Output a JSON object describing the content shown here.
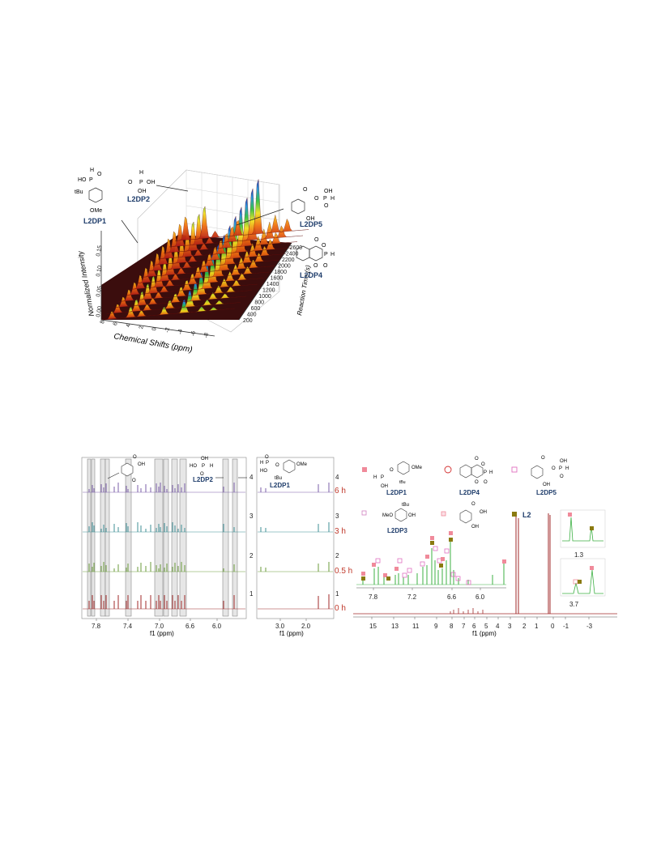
{
  "figure_top": {
    "x_axis_label": "Chemical Shifts (ppm)",
    "y_axis_label": "Normalized Intensity",
    "z_axis_label": "Reaction Time (s)",
    "x_ticks": [
      "8",
      "6",
      "4",
      "2",
      "0",
      "-2",
      "-4",
      "-6",
      "-8"
    ],
    "y_ticks": [
      "0.00",
      "0.05",
      "0.10",
      "0.15"
    ],
    "z_ticks": [
      "200",
      "400",
      "600",
      "800",
      "1000",
      "1200",
      "1400",
      "1600",
      "1800",
      "2000",
      "2200",
      "2400",
      "2600"
    ],
    "compounds": [
      {
        "id": "L2DP1",
        "label": "L2DP1",
        "groups": [
          "HO",
          "P",
          "O",
          "H",
          "tBu",
          "OMe"
        ]
      },
      {
        "id": "L2DP2",
        "label": "L2DP2",
        "groups": [
          "H",
          "O",
          "P",
          "OH",
          "OH"
        ]
      },
      {
        "id": "L2DP5",
        "label": "L2DP5",
        "groups": [
          "O",
          "O",
          "P",
          "H",
          "OH",
          "OH",
          "O"
        ]
      },
      {
        "id": "L2DP4",
        "label": "L2DP4",
        "groups": [
          "O",
          "O",
          "P",
          "H",
          "O",
          "O"
        ]
      }
    ]
  },
  "figure_bottom_left": {
    "xlabel": "f1 (ppm)",
    "x_ticks": [
      "7.8",
      "7.4",
      "7.0",
      "6.6",
      "6.0"
    ],
    "trace_numbers": [
      "4",
      "3",
      "2",
      "1"
    ],
    "trace_colors": [
      "#7b5fa8",
      "#3f8f95",
      "#6b9b3b",
      "#a02a2a"
    ],
    "compounds": [
      {
        "label": "",
        "groups": [
          "O",
          "OH",
          "O"
        ]
      },
      {
        "label": "L2DP2",
        "groups": [
          "HO",
          "P",
          "H",
          "O",
          "OH"
        ]
      }
    ]
  },
  "figure_bottom_mid": {
    "xlabel": "f1 (ppm)",
    "x_ticks": [
      "3.0",
      "2.0"
    ],
    "trace_numbers": [
      "4",
      "3",
      "2",
      "1"
    ],
    "time_labels": [
      "6 h",
      "3 h",
      "0.5 h",
      "0 h"
    ],
    "compound": {
      "label": "L2DP1",
      "groups": [
        "H",
        "P",
        "O",
        "O",
        "OMe",
        "HO",
        "tBu"
      ]
    }
  },
  "figure_bottom_right": {
    "xlabel": "f1 (ppm)",
    "x_ticks": [
      "15",
      "13",
      "11",
      "9",
      "8",
      "7",
      "6",
      "5",
      "4",
      "3",
      "2",
      "1",
      "0",
      "-1",
      "-3"
    ],
    "inset_ticks": [
      "7.8",
      "7.2",
      "6.6",
      "6.0"
    ],
    "inset_small_labels": [
      "1.3",
      "3.7"
    ],
    "legend": [
      {
        "label": "L2DP1",
        "groups": [
          "H",
          "P",
          "O",
          "OMe",
          "OH",
          "tBu"
        ],
        "marker": "filled-pink-square"
      },
      {
        "label": "L2DP4",
        "groups": [
          "O",
          "O",
          "P",
          "H",
          "O",
          "O"
        ],
        "marker": "red-circle"
      },
      {
        "label": "L2DP5",
        "groups": [
          "O",
          "O",
          "P",
          "OH",
          "H",
          "OH",
          "O"
        ],
        "marker": "open-pink-square"
      },
      {
        "label": "L2DP3",
        "groups": [
          "MeO",
          "tBu",
          "OH"
        ],
        "marker": "open-pink-square-small"
      },
      {
        "label": "",
        "groups": [
          "O",
          "OH",
          "OH"
        ],
        "marker": "pink-square-outline"
      },
      {
        "label": "L2",
        "groups": [],
        "marker": "olive-square"
      }
    ]
  },
  "colors": {
    "marker_pink": "#f08a9a",
    "marker_olive": "#8a7a10",
    "marker_red_circle": "#d22b2b",
    "compound_blue": "#1f3d6b",
    "trace_green": "#3cb043",
    "trace_red": "#a02a2a"
  }
}
